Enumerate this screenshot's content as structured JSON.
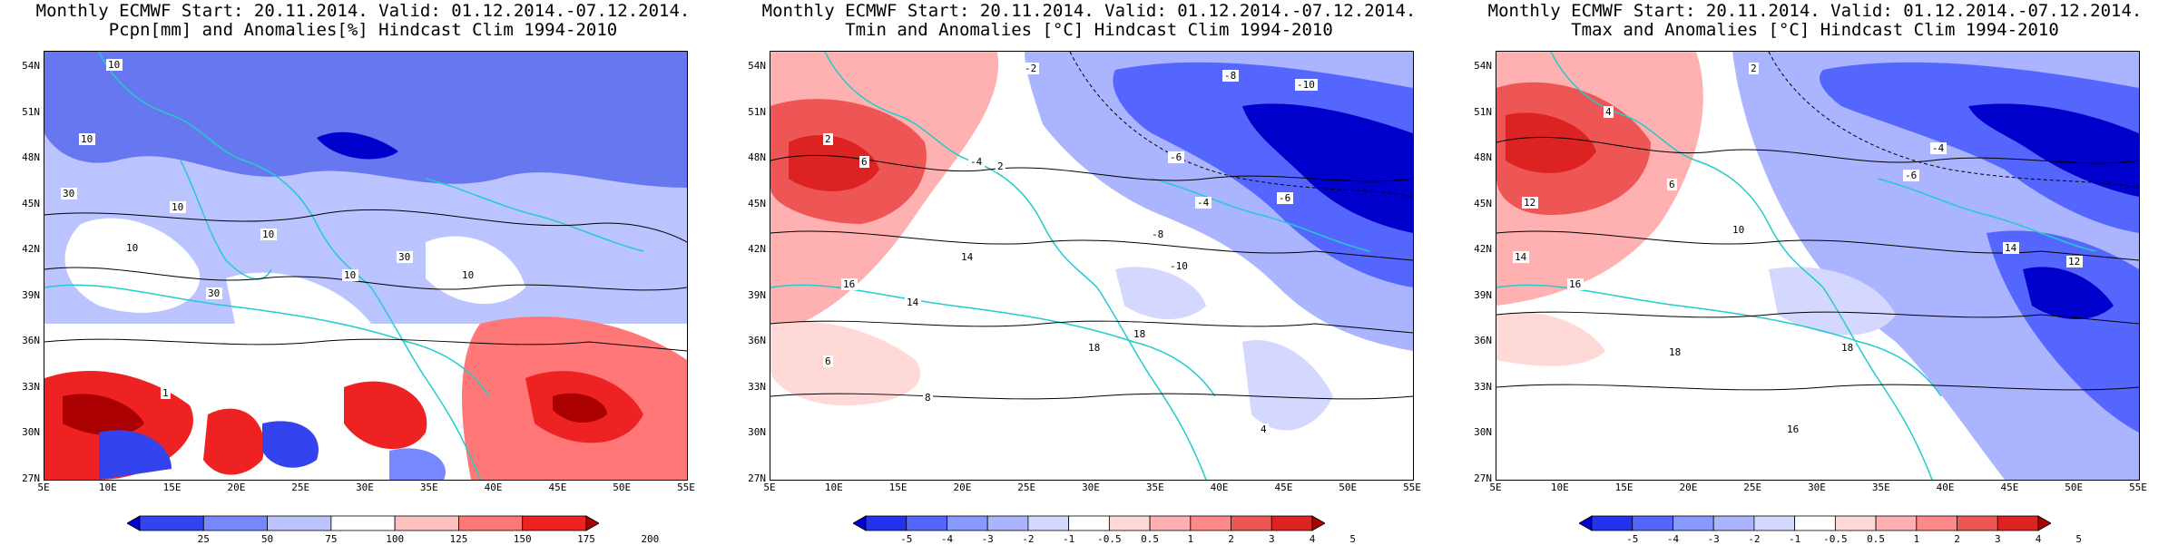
{
  "panels": [
    {
      "title_line1": "Monthly ECMWF Start: 20.11.2014. Valid: 01.12.2014.-07.12.2014.",
      "title_line2": "Pcpn[mm] and Anomalies[%] Hindcast Clim 1994-2010",
      "colorbar": {
        "labels": [
          "25",
          "50",
          "75",
          "100",
          "125",
          "150",
          "175",
          "200"
        ],
        "colors": [
          "#0000cc",
          "#3344ee",
          "#7788ff",
          "#bbc4ff",
          "#ffffff",
          "#ffc0c0",
          "#ff7777",
          "#ee2222",
          "#aa0000"
        ]
      },
      "contour_labels": [
        "10",
        "10",
        "30",
        "10",
        "10",
        "10",
        "30",
        "10",
        "30",
        "10",
        "1"
      ]
    },
    {
      "title_line1": "Monthly ECMWF Start: 20.11.2014. Valid: 01.12.2014.-07.12.2014.",
      "title_line2": "Tmin and Anomalies [°C] Hindcast Clim 1994-2010",
      "colorbar": {
        "labels": [
          "-5",
          "-4",
          "-3",
          "-2",
          "-1",
          "-0.5",
          "0.5",
          "1",
          "2",
          "3",
          "4",
          "5"
        ],
        "colors": [
          "#0000cc",
          "#2233ee",
          "#5566ff",
          "#8899ff",
          "#aab4ff",
          "#d4d8ff",
          "#ffffff",
          "#ffd8d8",
          "#ffb0b0",
          "#ff8888",
          "#ee5555",
          "#dd2222",
          "#aa0000"
        ]
      },
      "contour_labels": [
        "-2",
        "-8",
        "-10",
        "2",
        "-4",
        "-6",
        "6",
        "2",
        "-4",
        "-6",
        "14",
        "-8",
        "-10",
        "16",
        "14",
        "18",
        "18",
        "6",
        "8",
        "4"
      ]
    },
    {
      "title_line1": "Monthly ECMWF Start: 20.11.2014. Valid: 01.12.2014.-07.12.2014.",
      "title_line2": "Tmax and Anomalies [°C] Hindcast Clim 1994-2010",
      "colorbar": {
        "labels": [
          "-5",
          "-4",
          "-3",
          "-2",
          "-1",
          "-0.5",
          "0.5",
          "1",
          "2",
          "3",
          "4",
          "5"
        ],
        "colors": [
          "#0000cc",
          "#2233ee",
          "#5566ff",
          "#8899ff",
          "#aab4ff",
          "#d4d8ff",
          "#ffffff",
          "#ffd8d8",
          "#ffb0b0",
          "#ff8888",
          "#ee5555",
          "#dd2222",
          "#aa0000"
        ]
      },
      "contour_labels": [
        "2",
        "4",
        "-4",
        "-6",
        "6",
        "12",
        "10",
        "14",
        "16",
        "14",
        "12",
        "18",
        "18",
        "16"
      ]
    }
  ],
  "axes": {
    "lat_labels": [
      "54N",
      "51N",
      "48N",
      "45N",
      "42N",
      "39N",
      "36N",
      "33N",
      "30N",
      "27N"
    ],
    "lon_labels": [
      "5E",
      "10E",
      "15E",
      "20E",
      "25E",
      "30E",
      "35E",
      "40E",
      "45E",
      "50E",
      "55E"
    ]
  }
}
